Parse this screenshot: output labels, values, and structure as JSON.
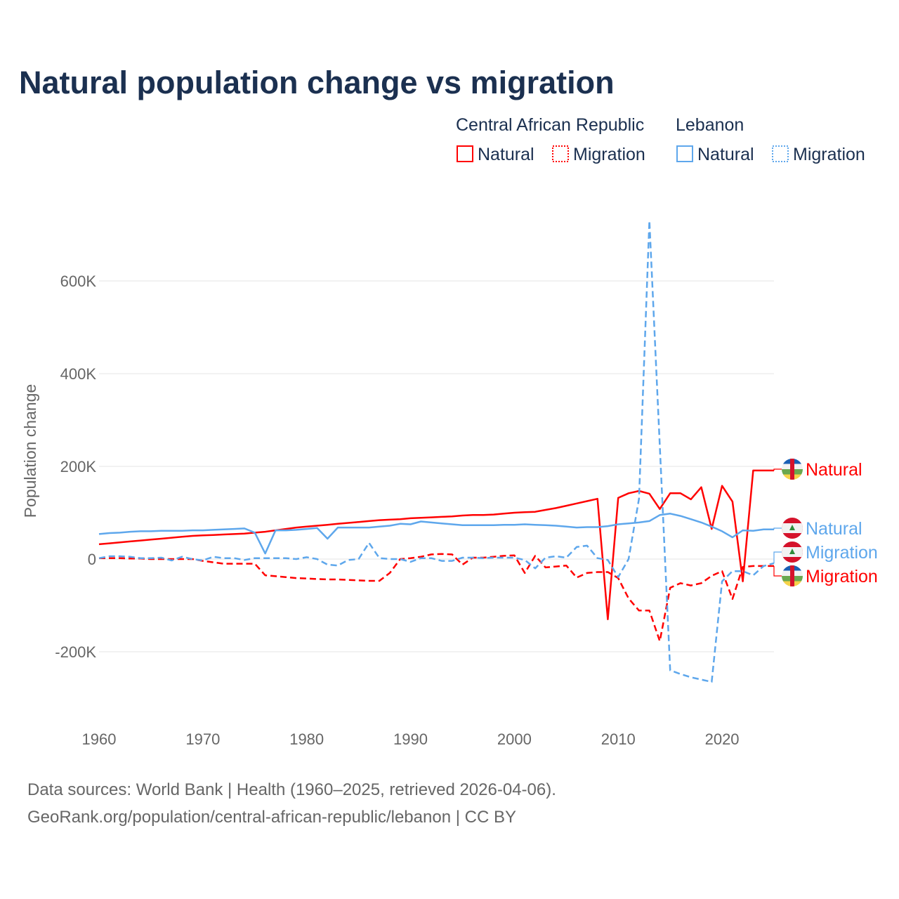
{
  "chart_data": {
    "type": "line",
    "title": "Natural population change vs migration",
    "xlabel": "",
    "ylabel": "Population change",
    "xlim": [
      1960,
      2025
    ],
    "ylim": [
      -300000,
      750000
    ],
    "grid": true,
    "x_ticks": [
      1960,
      1970,
      1980,
      1990,
      2000,
      2010,
      2020
    ],
    "x_tick_labels": [
      "1960",
      "1970",
      "1980",
      "1990",
      "2000",
      "2010",
      "2020"
    ],
    "y_ticks": [
      -200000,
      0,
      200000,
      400000,
      600000
    ],
    "y_tick_labels": [
      "-200K",
      "0",
      "200K",
      "400K",
      "600K"
    ],
    "legend": {
      "placement": "top-right",
      "groups": [
        {
          "name": "Central African Republic",
          "entries": [
            "Natural",
            "Migration"
          ]
        },
        {
          "name": "Lebanon",
          "entries": [
            "Natural",
            "Migration"
          ]
        }
      ]
    },
    "x": [
      1960,
      1961,
      1962,
      1963,
      1964,
      1965,
      1966,
      1967,
      1968,
      1969,
      1970,
      1971,
      1972,
      1973,
      1974,
      1975,
      1976,
      1977,
      1978,
      1979,
      1980,
      1981,
      1982,
      1983,
      1984,
      1985,
      1986,
      1987,
      1988,
      1989,
      1990,
      1991,
      1992,
      1993,
      1994,
      1995,
      1996,
      1997,
      1998,
      1999,
      2000,
      2001,
      2002,
      2003,
      2004,
      2005,
      2006,
      2007,
      2008,
      2009,
      2010,
      2011,
      2012,
      2013,
      2014,
      2015,
      2016,
      2017,
      2018,
      2019,
      2020,
      2021,
      2022,
      2023,
      2024,
      2025
    ],
    "series": [
      {
        "name": "Natural",
        "country": "Central African Republic",
        "color": "#ff0000",
        "dash": false,
        "end_label": "Natural",
        "values": [
          32000,
          34000,
          36000,
          38000,
          40000,
          42000,
          44000,
          46000,
          48000,
          50000,
          51000,
          52000,
          53000,
          54000,
          55000,
          57000,
          59000,
          62000,
          65000,
          68000,
          70000,
          72000,
          74000,
          76000,
          78000,
          80000,
          82000,
          84000,
          85000,
          86000,
          88000,
          89000,
          90000,
          91000,
          92000,
          94000,
          95000,
          95000,
          96000,
          98000,
          100000,
          101000,
          102000,
          106000,
          110000,
          115000,
          120000,
          125000,
          130000,
          -130000,
          132000,
          142000,
          147000,
          141000,
          108000,
          142000,
          142000,
          129000,
          155000,
          65000,
          158000,
          124000,
          -48000,
          191000,
          191000,
          191000
        ]
      },
      {
        "name": "Migration",
        "country": "Central African Republic",
        "color": "#ff0000",
        "dash": true,
        "end_label": "Migration",
        "values": [
          2000,
          2000,
          2000,
          1000,
          1000,
          0,
          0,
          0,
          0,
          0,
          -4000,
          -7000,
          -10000,
          -10000,
          -10000,
          -10000,
          -35000,
          -37000,
          -39000,
          -41000,
          -42000,
          -43000,
          -44000,
          -44000,
          -45000,
          -46000,
          -47000,
          -47000,
          -30000,
          0,
          2000,
          5000,
          10000,
          11000,
          10000,
          -12000,
          3000,
          3000,
          5000,
          7000,
          8000,
          -30000,
          7000,
          -18000,
          -16000,
          -14000,
          -40000,
          -30000,
          -28000,
          -28000,
          -41000,
          -85000,
          -111000,
          -111000,
          -177000,
          -62000,
          -52000,
          -57000,
          -52000,
          -36000,
          -26000,
          -86000,
          -17000,
          -15000,
          -15000,
          -15000
        ]
      },
      {
        "name": "Natural",
        "country": "Lebanon",
        "color": "#5ea7ec",
        "dash": false,
        "end_label": "Natural",
        "values": [
          54000,
          56000,
          57000,
          59000,
          60000,
          60000,
          61000,
          61000,
          61000,
          62000,
          62000,
          63000,
          64000,
          65000,
          66000,
          57000,
          12000,
          62000,
          62000,
          63000,
          65000,
          67000,
          44000,
          68000,
          68000,
          68000,
          68000,
          70000,
          72000,
          76000,
          75000,
          81000,
          79000,
          77000,
          75000,
          73000,
          73000,
          73000,
          73000,
          74000,
          74000,
          75000,
          74000,
          73000,
          72000,
          70000,
          68000,
          69000,
          69000,
          71000,
          75000,
          77000,
          79000,
          82000,
          95000,
          98000,
          93000,
          86000,
          79000,
          70000,
          60000,
          47000,
          62000,
          61000,
          64000,
          64000
        ]
      },
      {
        "name": "Migration",
        "country": "Lebanon",
        "color": "#5ea7ec",
        "dash": true,
        "end_label": "Migration",
        "values": [
          2000,
          6000,
          6000,
          5000,
          2000,
          2000,
          3000,
          -3000,
          5000,
          0,
          -3000,
          5000,
          2000,
          2000,
          -2000,
          2000,
          2000,
          2000,
          2000,
          0,
          4000,
          0,
          -12000,
          -14000,
          -2000,
          0,
          35000,
          2000,
          0,
          0,
          -6000,
          2000,
          2000,
          -4000,
          -4000,
          3000,
          3000,
          2000,
          3000,
          3000,
          3000,
          -2000,
          -20000,
          3000,
          6000,
          3000,
          26000,
          29000,
          2000,
          -2000,
          -39000,
          0,
          130000,
          730000,
          245000,
          -240000,
          -248000,
          -255000,
          -260000,
          -265000,
          -48000,
          -26000,
          -26000,
          -35000,
          -15000,
          -9000
        ]
      }
    ]
  },
  "footer": {
    "line1": "Data sources: World Bank | Health (1960–2025, retrieved 2026-04-06).",
    "line2": "GeoRank.org/population/central-african-republic/lebanon | CC BY"
  }
}
